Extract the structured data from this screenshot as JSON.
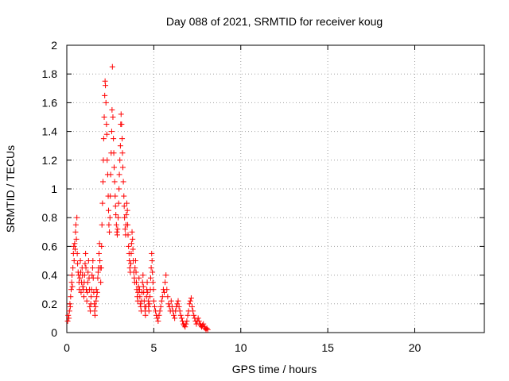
{
  "chart_data": {
    "type": "scatter",
    "title": "Day 088 of 2021, SRMTID for receiver koug",
    "xlabel": "GPS time / hours",
    "ylabel": "SRMTID / TECUs",
    "xlim": [
      0,
      24
    ],
    "ylim": [
      0,
      2
    ],
    "xticks": [
      "0",
      "5",
      "10",
      "15",
      "20"
    ],
    "yticks": [
      "0",
      "0.2",
      "0.4",
      "0.6",
      "0.8",
      "1",
      "1.2",
      "1.4",
      "1.6",
      "1.8",
      "2"
    ],
    "grid": true,
    "marker": "plus",
    "color": "#ff0000",
    "series": [
      {
        "x": [
          0.05,
          0.08,
          0.12,
          0.15,
          0.18,
          0.2,
          0.22,
          0.25,
          0.28,
          0.3,
          0.32,
          0.35,
          0.38,
          0.4,
          0.42,
          0.45,
          0.48,
          0.5,
          0.52,
          0.55,
          0.58,
          0.6,
          0.62,
          0.65,
          0.68,
          0.7,
          0.72,
          0.75,
          0.78,
          0.8,
          0.82,
          0.85,
          0.88,
          0.9,
          0.92,
          0.95,
          0.98,
          1.0,
          1.02,
          1.05,
          1.08,
          1.1,
          1.12,
          1.15,
          1.18,
          1.2,
          1.22,
          1.25,
          1.28,
          1.3,
          1.32,
          1.35,
          1.38,
          1.4,
          1.42,
          1.45,
          1.48,
          1.5,
          1.52,
          1.55,
          1.58,
          1.6,
          1.62,
          1.65,
          1.68,
          1.7,
          1.72,
          1.75,
          1.78,
          1.8,
          1.82,
          1.85,
          1.88,
          1.9,
          1.92,
          1.95,
          1.98,
          2.0,
          2.02,
          2.05,
          2.08,
          2.1,
          2.12,
          2.15,
          2.18,
          2.2,
          2.22,
          2.25,
          2.28,
          2.3,
          2.32,
          2.35,
          2.38,
          2.4,
          2.42,
          2.45,
          2.48,
          2.5,
          2.52,
          2.55,
          2.58,
          2.6,
          2.62,
          2.65,
          2.68,
          2.7,
          2.72,
          2.75,
          2.78,
          2.8,
          2.82,
          2.85,
          2.88,
          2.9,
          2.92,
          2.95,
          2.98,
          3.0,
          3.02,
          3.05,
          3.08,
          3.1,
          3.12,
          3.15,
          3.18,
          3.2,
          3.22,
          3.25,
          3.28,
          3.3,
          3.32,
          3.35,
          3.38,
          3.4,
          3.42,
          3.45,
          3.48,
          3.5,
          3.52,
          3.55,
          3.58,
          3.6,
          3.62,
          3.65,
          3.68,
          3.7,
          3.72,
          3.75,
          3.78,
          3.8,
          3.82,
          3.85,
          3.88,
          3.9,
          3.92,
          3.95,
          3.98,
          4.0,
          4.02,
          4.05,
          4.08,
          4.1,
          4.12,
          4.15,
          4.18,
          4.2,
          4.22,
          4.25,
          4.28,
          4.3,
          4.32,
          4.35,
          4.38,
          4.4,
          4.42,
          4.45,
          4.48,
          4.5,
          4.52,
          4.55,
          4.58,
          4.6,
          4.62,
          4.65,
          4.68,
          4.7,
          4.72,
          4.75,
          4.78,
          4.8,
          4.82,
          4.85,
          4.88,
          4.9,
          4.92,
          4.95,
          4.98,
          5.0,
          5.05,
          5.1,
          5.15,
          5.2,
          5.25,
          5.3,
          5.35,
          5.4,
          5.45,
          5.5,
          5.55,
          5.6,
          5.65,
          5.7,
          5.75,
          5.8,
          5.85,
          5.9,
          5.95,
          6.0,
          6.05,
          6.1,
          6.15,
          6.2,
          6.25,
          6.3,
          6.35,
          6.4,
          6.45,
          6.5,
          6.55,
          6.6,
          6.65,
          6.7,
          6.75,
          6.8,
          6.85,
          6.9,
          6.95,
          7.0,
          7.05,
          7.1,
          7.15,
          7.2,
          7.25,
          7.3,
          7.35,
          7.4,
          7.45,
          7.5,
          7.55,
          7.6,
          7.65,
          7.7,
          7.75,
          7.8,
          7.85,
          7.9,
          7.95,
          8.0,
          8.05,
          8.1
        ],
        "y": [
          0.08,
          0.12,
          0.1,
          0.15,
          0.2,
          0.18,
          0.25,
          0.3,
          0.35,
          0.4,
          0.32,
          0.45,
          0.55,
          0.6,
          0.5,
          0.62,
          0.58,
          0.7,
          0.75,
          0.65,
          0.8,
          0.55,
          0.48,
          0.42,
          0.4,
          0.35,
          0.3,
          0.38,
          0.5,
          0.42,
          0.28,
          0.35,
          0.45,
          0.4,
          0.32,
          0.3,
          0.25,
          0.35,
          0.4,
          0.48,
          0.55,
          0.45,
          0.3,
          0.22,
          0.28,
          0.35,
          0.42,
          0.5,
          0.38,
          0.3,
          0.18,
          0.15,
          0.2,
          0.25,
          0.3,
          0.4,
          0.45,
          0.5,
          0.38,
          0.28,
          0.2,
          0.15,
          0.12,
          0.18,
          0.22,
          0.3,
          0.25,
          0.28,
          0.38,
          0.42,
          0.45,
          0.55,
          0.62,
          0.5,
          0.45,
          0.35,
          0.45,
          0.6,
          0.75,
          0.9,
          1.05,
          1.2,
          1.35,
          1.5,
          1.65,
          1.75,
          1.72,
          1.6,
          1.45,
          1.38,
          1.2,
          1.1,
          0.95,
          0.85,
          0.75,
          0.7,
          0.8,
          0.95,
          1.1,
          1.25,
          1.4,
          1.55,
          1.85,
          1.5,
          1.35,
          1.25,
          1.15,
          1.05,
          0.95,
          0.88,
          0.82,
          0.75,
          0.7,
          0.68,
          0.72,
          0.8,
          0.9,
          1.0,
          1.1,
          1.2,
          1.3,
          1.45,
          1.52,
          1.45,
          1.35,
          1.25,
          1.15,
          1.05,
          0.95,
          0.88,
          0.8,
          0.72,
          0.68,
          0.75,
          0.82,
          0.9,
          0.85,
          0.75,
          0.68,
          0.6,
          0.55,
          0.5,
          0.45,
          0.42,
          0.48,
          0.55,
          0.62,
          0.7,
          0.65,
          0.58,
          0.5,
          0.42,
          0.38,
          0.35,
          0.45,
          0.5,
          0.42,
          0.35,
          0.3,
          0.25,
          0.22,
          0.28,
          0.32,
          0.38,
          0.3,
          0.25,
          0.2,
          0.18,
          0.15,
          0.22,
          0.28,
          0.35,
          0.4,
          0.32,
          0.28,
          0.22,
          0.18,
          0.15,
          0.12,
          0.18,
          0.25,
          0.3,
          0.35,
          0.28,
          0.22,
          0.18,
          0.15,
          0.2,
          0.25,
          0.3,
          0.38,
          0.45,
          0.55,
          0.5,
          0.42,
          0.35,
          0.3,
          0.22,
          0.18,
          0.15,
          0.12,
          0.1,
          0.08,
          0.12,
          0.15,
          0.18,
          0.22,
          0.25,
          0.3,
          0.28,
          0.35,
          0.4,
          0.3,
          0.25,
          0.2,
          0.18,
          0.15,
          0.22,
          0.18,
          0.15,
          0.12,
          0.1,
          0.15,
          0.18,
          0.2,
          0.22,
          0.18,
          0.15,
          0.12,
          0.1,
          0.08,
          0.06,
          0.05,
          0.04,
          0.06,
          0.08,
          0.12,
          0.15,
          0.2,
          0.22,
          0.24,
          0.18,
          0.15,
          0.12,
          0.1,
          0.08,
          0.06,
          0.08,
          0.1,
          0.08,
          0.06,
          0.05,
          0.04,
          0.05,
          0.06,
          0.04,
          0.03,
          0.02,
          0.03,
          0.02
        ]
      }
    ]
  }
}
